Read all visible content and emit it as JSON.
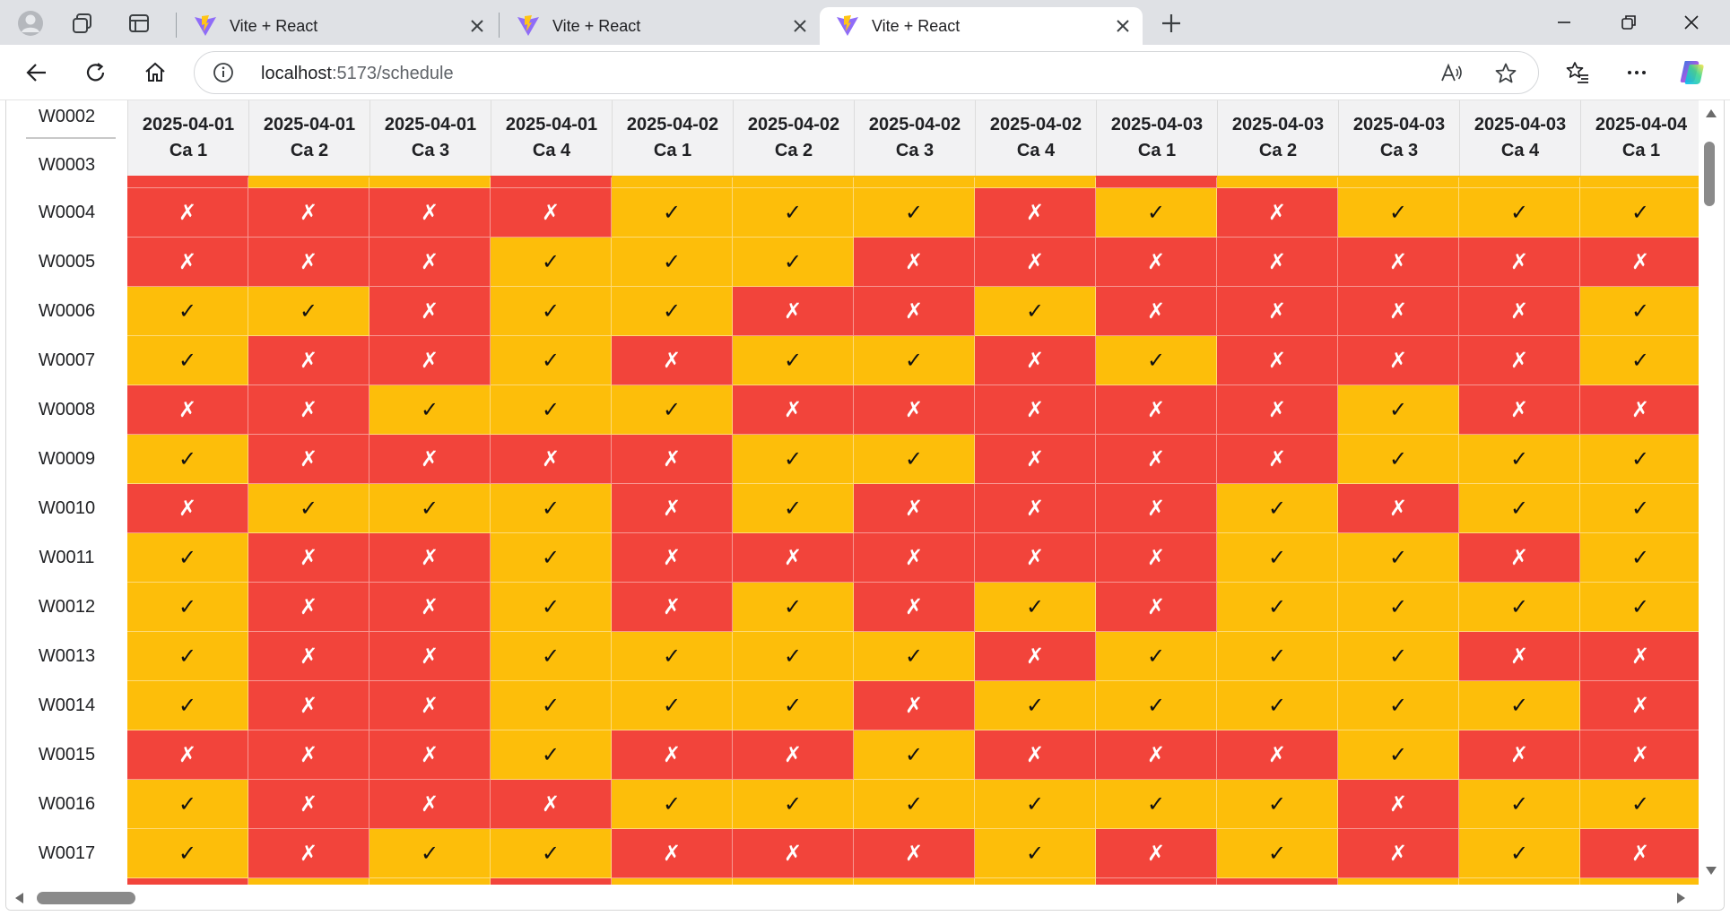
{
  "browser": {
    "tabs": [
      {
        "title": "Vite + React",
        "active": false
      },
      {
        "title": "Vite + React",
        "active": false
      },
      {
        "title": "Vite + React",
        "active": true
      }
    ],
    "address": {
      "host": "localhost",
      "path": ":5173/schedule"
    }
  },
  "schedule": {
    "columns": [
      {
        "date": "2025-04-01",
        "shift": "Ca 1"
      },
      {
        "date": "2025-04-01",
        "shift": "Ca 2"
      },
      {
        "date": "2025-04-01",
        "shift": "Ca 3"
      },
      {
        "date": "2025-04-01",
        "shift": "Ca 4"
      },
      {
        "date": "2025-04-02",
        "shift": "Ca 1"
      },
      {
        "date": "2025-04-02",
        "shift": "Ca 2"
      },
      {
        "date": "2025-04-02",
        "shift": "Ca 3"
      },
      {
        "date": "2025-04-02",
        "shift": "Ca 4"
      },
      {
        "date": "2025-04-03",
        "shift": "Ca 1"
      },
      {
        "date": "2025-04-03",
        "shift": "Ca 2"
      },
      {
        "date": "2025-04-03",
        "shift": "Ca 3"
      },
      {
        "date": "2025-04-03",
        "shift": "Ca 4"
      },
      {
        "date": "2025-04-04",
        "shift": "Ca 1"
      }
    ],
    "partial_top_labels": [
      "W0002",
      "W0003"
    ],
    "partial_top_row": [
      0,
      1,
      1,
      0,
      1,
      1,
      1,
      1,
      0,
      1,
      1,
      1,
      1
    ],
    "partial_bottom_row": [
      0,
      1,
      1,
      0,
      1,
      1,
      1,
      1,
      0,
      0,
      1,
      1,
      1
    ],
    "rows": [
      {
        "id": "W0004",
        "cells": [
          0,
          0,
          0,
          0,
          1,
          1,
          1,
          0,
          1,
          0,
          1,
          1,
          1
        ]
      },
      {
        "id": "W0005",
        "cells": [
          0,
          0,
          0,
          1,
          1,
          1,
          0,
          0,
          0,
          0,
          0,
          0,
          0
        ]
      },
      {
        "id": "W0006",
        "cells": [
          1,
          1,
          0,
          1,
          1,
          0,
          0,
          1,
          0,
          0,
          0,
          0,
          1
        ]
      },
      {
        "id": "W0007",
        "cells": [
          1,
          0,
          0,
          1,
          0,
          1,
          1,
          0,
          1,
          0,
          0,
          0,
          1
        ]
      },
      {
        "id": "W0008",
        "cells": [
          0,
          0,
          1,
          1,
          1,
          0,
          0,
          0,
          0,
          0,
          1,
          0,
          0
        ]
      },
      {
        "id": "W0009",
        "cells": [
          1,
          0,
          0,
          0,
          0,
          1,
          1,
          0,
          0,
          0,
          1,
          1,
          1
        ]
      },
      {
        "id": "W0010",
        "cells": [
          0,
          1,
          1,
          1,
          0,
          1,
          0,
          0,
          0,
          1,
          0,
          1,
          1
        ]
      },
      {
        "id": "W0011",
        "cells": [
          1,
          0,
          0,
          1,
          0,
          0,
          0,
          0,
          0,
          1,
          1,
          0,
          1
        ]
      },
      {
        "id": "W0012",
        "cells": [
          1,
          0,
          0,
          1,
          0,
          1,
          0,
          1,
          0,
          1,
          1,
          1,
          1
        ]
      },
      {
        "id": "W0013",
        "cells": [
          1,
          0,
          0,
          1,
          1,
          1,
          1,
          0,
          1,
          1,
          1,
          0,
          0
        ]
      },
      {
        "id": "W0014",
        "cells": [
          1,
          0,
          0,
          1,
          1,
          1,
          0,
          1,
          1,
          1,
          1,
          1,
          0
        ]
      },
      {
        "id": "W0015",
        "cells": [
          0,
          0,
          0,
          1,
          0,
          0,
          1,
          0,
          0,
          0,
          1,
          0,
          0
        ]
      },
      {
        "id": "W0016",
        "cells": [
          1,
          0,
          0,
          0,
          1,
          1,
          1,
          1,
          1,
          1,
          0,
          1,
          1
        ]
      },
      {
        "id": "W0017",
        "cells": [
          1,
          0,
          1,
          1,
          0,
          0,
          0,
          1,
          0,
          1,
          0,
          1,
          0
        ]
      }
    ],
    "symbols": {
      "available": "✓",
      "unavailable": "✗"
    },
    "colors": {
      "available": "#fdbe0a",
      "unavailable": "#f2443b",
      "header_bg": "#f2f2f3"
    }
  }
}
